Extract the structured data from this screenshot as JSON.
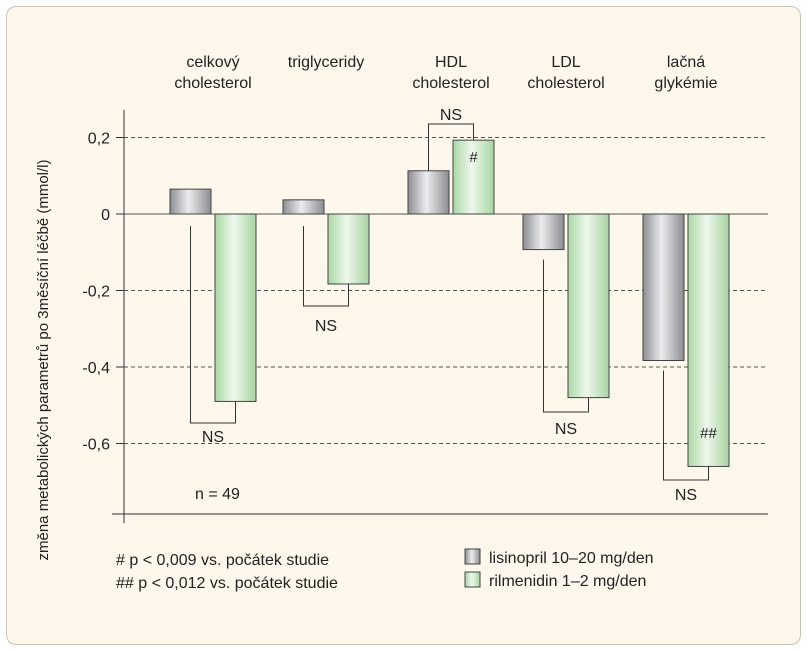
{
  "chart_data": {
    "type": "bar",
    "categories": [
      [
        "celkový",
        "cholesterol"
      ],
      [
        "triglyceridy"
      ],
      [
        "HDL",
        "cholesterol"
      ],
      [
        "LDL",
        "cholesterol"
      ],
      [
        "lačná",
        "glykémie"
      ]
    ],
    "series": [
      {
        "name": "lisinopril 10–20 mg/den",
        "values": [
          0.065,
          0.037,
          0.113,
          -0.093,
          -0.383
        ],
        "color": "#a9aaae"
      },
      {
        "name": "rilmenidin 1–2 mg/den",
        "values": [
          -0.49,
          -0.183,
          0.193,
          -0.48,
          -0.66
        ],
        "color": "#c9e6c6"
      }
    ],
    "ylabel": "změna metabolických parametrů po 3měsíční léčbě (mmol/l)",
    "ylim": [
      -0.8,
      0.25
    ],
    "yticks": [
      0.2,
      0,
      -0.2,
      -0.4,
      -0.6
    ],
    "yticklabels": [
      "0,2",
      "0",
      "-0,2",
      "-0,4",
      "-0,6"
    ],
    "grid": "dashed",
    "annotations": {
      "comparisons": [
        "NS",
        "NS",
        "NS",
        "NS",
        "NS"
      ],
      "bar_marks": [
        {
          "category": 2,
          "series": 1,
          "text": "#"
        },
        {
          "category": 4,
          "series": 1,
          "text": "##"
        }
      ],
      "n_label": "n = 49"
    },
    "footnotes": [
      "# p < 0,009 vs. počátek studie",
      "## p < 0,012 vs. počátek studie"
    ],
    "legend": "bottom-right"
  }
}
